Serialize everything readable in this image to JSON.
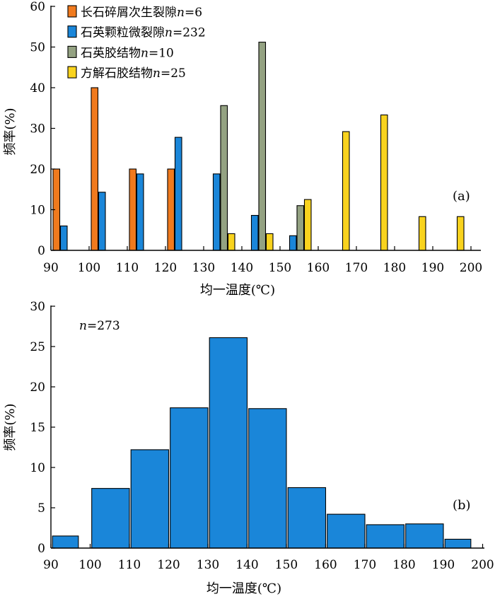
{
  "chart_data": [
    {
      "type": "bar",
      "panel_label": "(a)",
      "xlabel": "均一温度(℃)",
      "ylabel": "频率(%)",
      "xlim": [
        90,
        200
      ],
      "ylim": [
        0,
        60
      ],
      "x_ticks": [
        90,
        100,
        110,
        120,
        130,
        140,
        150,
        160,
        170,
        180,
        190,
        200
      ],
      "y_ticks": [
        0,
        10,
        20,
        30,
        40,
        50,
        60
      ],
      "bins": [
        [
          90,
          100
        ],
        [
          100,
          110
        ],
        [
          110,
          120
        ],
        [
          120,
          130
        ],
        [
          130,
          140
        ],
        [
          140,
          150
        ],
        [
          150,
          160
        ],
        [
          160,
          170
        ],
        [
          170,
          180
        ],
        [
          180,
          190
        ],
        [
          190,
          200
        ]
      ],
      "legend_position": "top-left",
      "series": [
        {
          "name": "长石碎屑次生裂隙",
          "n_label": "n",
          "n_value": "=6",
          "color": "#f07a1e",
          "values": [
            20,
            40,
            20,
            20,
            null,
            null,
            null,
            null,
            null,
            null,
            null
          ]
        },
        {
          "name": "石英颗粒微裂隙",
          "n_label": "n",
          "n_value": "=232",
          "color": "#1a86d9",
          "values": [
            6,
            14.3,
            18.8,
            27.8,
            18.8,
            8.6,
            3.6,
            null,
            null,
            null,
            null
          ]
        },
        {
          "name": "石英胶结物",
          "n_label": "n",
          "n_value": "=10",
          "color": "#94a282",
          "values": [
            null,
            null,
            null,
            null,
            35.6,
            51.2,
            11,
            null,
            null,
            null,
            null
          ]
        },
        {
          "name": "方解石胶结物",
          "n_label": "n",
          "n_value": "=25",
          "color": "#f9d31e",
          "values": [
            null,
            null,
            null,
            null,
            4.1,
            4.1,
            12.5,
            29.2,
            33.3,
            8.3,
            8.3
          ]
        }
      ]
    },
    {
      "type": "bar",
      "panel_label": "(b)",
      "xlabel": "均一温度(℃)",
      "ylabel": "频率(%)",
      "xlim": [
        90,
        200
      ],
      "ylim": [
        0,
        30
      ],
      "x_ticks": [
        90,
        100,
        110,
        120,
        130,
        140,
        150,
        160,
        170,
        180,
        190,
        200
      ],
      "y_ticks": [
        0,
        5,
        10,
        15,
        20,
        25,
        30
      ],
      "n_label": "n",
      "n_value": "=273",
      "series": [
        {
          "color": "#1a86d9",
          "bins": [
            [
              90,
              97
            ],
            [
              100,
              110
            ],
            [
              110,
              120
            ],
            [
              120,
              130
            ],
            [
              130,
              140
            ],
            [
              140,
              150
            ],
            [
              150,
              160
            ],
            [
              160,
              170
            ],
            [
              170,
              180
            ],
            [
              180,
              190
            ],
            [
              190,
              197
            ]
          ],
          "values": [
            1.5,
            7.4,
            12.2,
            17.4,
            26.1,
            17.3,
            7.5,
            4.2,
            2.9,
            3.0,
            1.1
          ]
        }
      ]
    }
  ]
}
